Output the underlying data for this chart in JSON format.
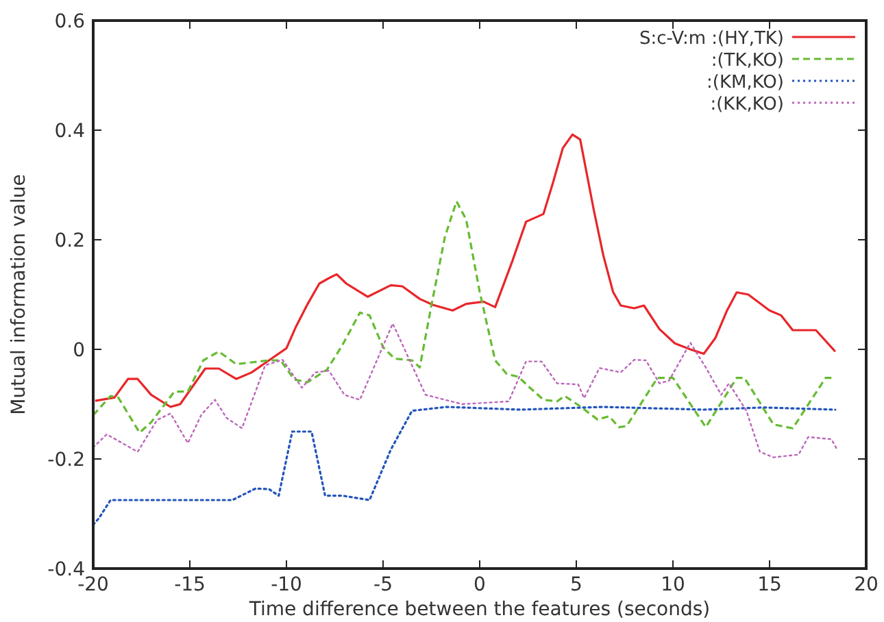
{
  "chart_data": {
    "type": "line",
    "xlabel": "Time difference between the features (seconds)",
    "ylabel": "Mutual information value",
    "xlim": [
      -20,
      20
    ],
    "xticks": [
      -20,
      -15,
      -10,
      -5,
      0,
      5,
      10,
      15,
      20
    ],
    "ylim": [
      -0.4,
      0.6
    ],
    "yticks": [
      -0.4,
      -0.2,
      0,
      0.2,
      0.4,
      0.6
    ],
    "grid": false,
    "legend": "top right",
    "marker": "none",
    "series": [
      {
        "name": "S:c-V:m :(HY,TK)",
        "color": "#e8262a",
        "line_style": "solid",
        "x": [
          -19.9,
          -18.9,
          -18.2,
          -17.7,
          -17.0,
          -16.0,
          -15.5,
          -14.2,
          -13.5,
          -12.6,
          -11.8,
          -10.9,
          -10.0,
          -9.5,
          -8.9,
          -8.3,
          -7.8,
          -7.4,
          -6.9,
          -5.8,
          -4.6,
          -4.0,
          -3.1,
          -2.4,
          -1.4,
          -0.7,
          0.2,
          0.8,
          1.7,
          2.4,
          3.3,
          3.8,
          4.3,
          4.8,
          5.2,
          5.9,
          6.4,
          6.9,
          7.3,
          8.0,
          8.5,
          9.3,
          10.1,
          10.9,
          11.6,
          12.2,
          12.8,
          13.3,
          13.9,
          15.0,
          15.6,
          16.2,
          17.4,
          18.4
        ],
        "values": [
          -0.094,
          -0.088,
          -0.054,
          -0.054,
          -0.083,
          -0.105,
          -0.1,
          -0.035,
          -0.035,
          -0.054,
          -0.042,
          -0.02,
          0.002,
          0.042,
          0.083,
          0.12,
          0.13,
          0.137,
          0.12,
          0.096,
          0.117,
          0.115,
          0.092,
          0.081,
          0.071,
          0.083,
          0.087,
          0.077,
          0.162,
          0.233,
          0.247,
          0.305,
          0.367,
          0.392,
          0.383,
          0.255,
          0.171,
          0.105,
          0.08,
          0.075,
          0.08,
          0.037,
          0.011,
          0,
          -0.008,
          0.021,
          0.071,
          0.104,
          0.1,
          0.071,
          0.062,
          0.035,
          0.035,
          -0.004
        ]
      },
      {
        "name": ":(TK,KO)",
        "color": "#66bb33",
        "line_style": "dashed",
        "x": [
          -20,
          -19.1,
          -18.7,
          -17.6,
          -17.0,
          -15.8,
          -15.1,
          -14.3,
          -13.5,
          -12.6,
          -10.9,
          -10.3,
          -9.6,
          -8.9,
          -7.9,
          -7.1,
          -6.2,
          -5.7,
          -5.0,
          -4.4,
          -3.5,
          -3.1,
          -2.5,
          -1.8,
          -1.2,
          -0.7,
          0,
          0.8,
          1.4,
          2.0,
          2.6,
          3.3,
          4.0,
          4.4,
          5.2,
          6.1,
          6.7,
          7.2,
          7.6,
          9.2,
          10.0,
          11.7,
          13.3,
          13.7,
          15.2,
          16.2,
          17.9,
          18.4
        ],
        "values": [
          -0.12,
          -0.085,
          -0.088,
          -0.152,
          -0.133,
          -0.077,
          -0.077,
          -0.02,
          -0.004,
          -0.027,
          -0.02,
          -0.02,
          -0.055,
          -0.06,
          -0.037,
          0.008,
          0.067,
          0.062,
          0.004,
          -0.017,
          -0.02,
          -0.033,
          0.08,
          0.205,
          0.27,
          0.237,
          0.105,
          -0.02,
          -0.045,
          -0.05,
          -0.07,
          -0.092,
          -0.095,
          -0.085,
          -0.104,
          -0.128,
          -0.122,
          -0.142,
          -0.14,
          -0.052,
          -0.052,
          -0.142,
          -0.052,
          -0.052,
          -0.137,
          -0.144,
          -0.052,
          -0.052
        ]
      },
      {
        "name": ":(KM,KO)",
        "color": "#2255bb",
        "line_style": "dotted",
        "x": [
          -20,
          -19.7,
          -19.1,
          -12.8,
          -11.6,
          -10.9,
          -10.4,
          -9.7,
          -8.7,
          -8.0,
          -7.1,
          -5.7,
          -4.6,
          -3.5,
          -1.7,
          2.1,
          6.4,
          11.6,
          14.7,
          18.4
        ],
        "values": [
          -0.32,
          -0.308,
          -0.275,
          -0.275,
          -0.254,
          -0.255,
          -0.267,
          -0.15,
          -0.15,
          -0.267,
          -0.267,
          -0.275,
          -0.183,
          -0.112,
          -0.105,
          -0.11,
          -0.105,
          -0.11,
          -0.106,
          -0.11
        ]
      },
      {
        "name": ":(KK,KO)",
        "color": "#bb66bb",
        "line_style": "dotted",
        "x": [
          -20,
          -19.3,
          -17.7,
          -16.7,
          -16.0,
          -15.1,
          -14.4,
          -13.7,
          -13.1,
          -12.3,
          -11.1,
          -10.2,
          -9.2,
          -8.5,
          -7.8,
          -7.0,
          -6.2,
          -4.5,
          -2.8,
          -0.9,
          1.5,
          2.4,
          3.2,
          4.0,
          5.1,
          5.4,
          6.2,
          7.3,
          8.0,
          8.6,
          9.3,
          9.8,
          10.9,
          11.7,
          12.5,
          12.9,
          13.8,
          14.5,
          15.2,
          16.5,
          17.0,
          18.2,
          18.5
        ],
        "values": [
          -0.179,
          -0.155,
          -0.187,
          -0.129,
          -0.117,
          -0.171,
          -0.119,
          -0.092,
          -0.125,
          -0.144,
          -0.029,
          -0.019,
          -0.07,
          -0.042,
          -0.039,
          -0.083,
          -0.092,
          0.047,
          -0.083,
          -0.1,
          -0.095,
          -0.022,
          -0.022,
          -0.062,
          -0.064,
          -0.089,
          -0.034,
          -0.042,
          -0.019,
          -0.02,
          -0.062,
          -0.057,
          0.012,
          -0.033,
          -0.083,
          -0.062,
          -0.112,
          -0.187,
          -0.197,
          -0.192,
          -0.16,
          -0.164,
          -0.183
        ]
      }
    ]
  }
}
